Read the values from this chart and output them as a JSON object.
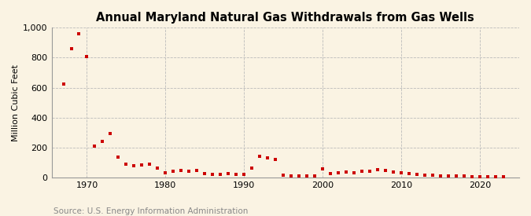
{
  "title": "Annual Maryland Natural Gas Withdrawals from Gas Wells",
  "ylabel": "Million Cubic Feet",
  "source": "Source: U.S. Energy Information Administration",
  "background_color": "#faf3e3",
  "plot_bg_color": "#faf3e3",
  "marker_color": "#cc0000",
  "years": [
    1967,
    1968,
    1969,
    1970,
    1971,
    1972,
    1973,
    1974,
    1975,
    1976,
    1977,
    1978,
    1979,
    1980,
    1981,
    1982,
    1983,
    1984,
    1985,
    1986,
    1987,
    1988,
    1989,
    1990,
    1991,
    1992,
    1993,
    1994,
    1995,
    1996,
    1997,
    1998,
    1999,
    2000,
    2001,
    2002,
    2003,
    2004,
    2005,
    2006,
    2007,
    2008,
    2009,
    2010,
    2011,
    2012,
    2013,
    2014,
    2015,
    2016,
    2017,
    2018,
    2019,
    2020,
    2021,
    2022,
    2023
  ],
  "values": [
    622,
    858,
    960,
    810,
    210,
    240,
    295,
    135,
    90,
    80,
    85,
    90,
    65,
    30,
    40,
    45,
    40,
    45,
    25,
    20,
    20,
    25,
    20,
    20,
    65,
    140,
    130,
    120,
    15,
    10,
    10,
    10,
    10,
    55,
    25,
    30,
    35,
    30,
    40,
    40,
    50,
    45,
    35,
    30,
    25,
    20,
    15,
    15,
    10,
    10,
    10,
    8,
    5,
    5,
    5,
    5,
    5
  ],
  "ylim": [
    0,
    1000
  ],
  "yticks": [
    0,
    200,
    400,
    600,
    800,
    1000
  ],
  "ytick_labels": [
    "0",
    "200",
    "400",
    "600",
    "800",
    "1,000"
  ],
  "xlim": [
    1965.5,
    2025
  ],
  "xticks": [
    1970,
    1980,
    1990,
    2000,
    2010,
    2020
  ],
  "title_fontsize": 10.5,
  "label_fontsize": 8,
  "tick_fontsize": 8,
  "source_fontsize": 7.5,
  "grid_color": "#bbbbbb",
  "spine_color": "#999999"
}
